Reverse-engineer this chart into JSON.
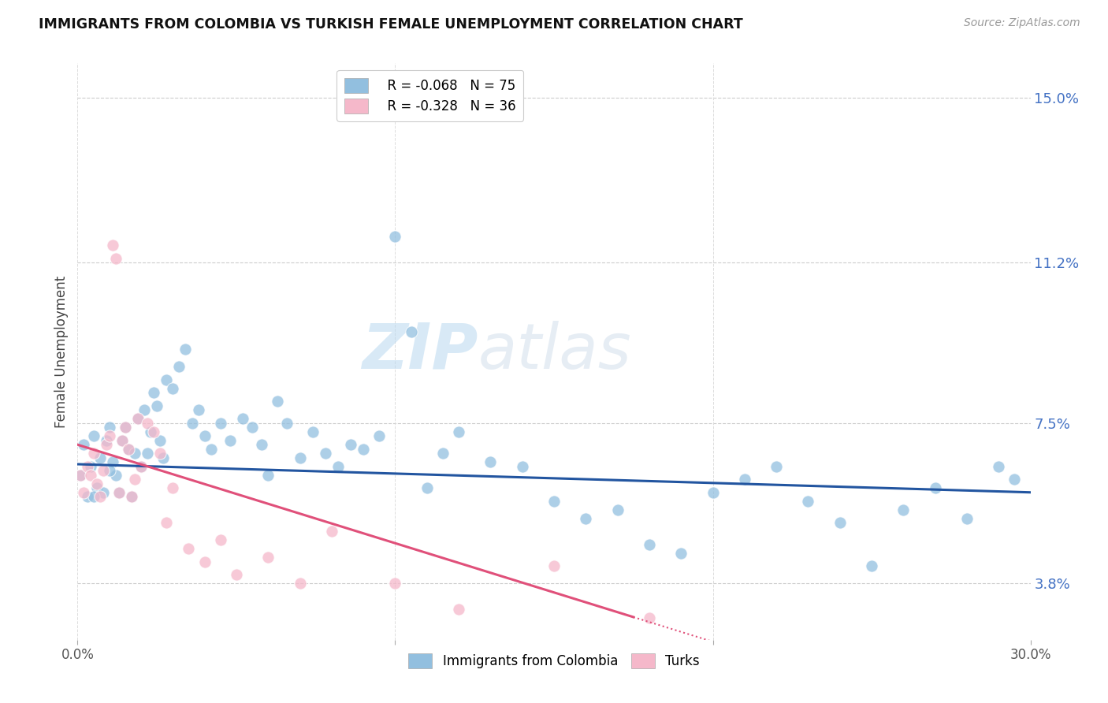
{
  "title": "IMMIGRANTS FROM COLOMBIA VS TURKISH FEMALE UNEMPLOYMENT CORRELATION CHART",
  "source": "Source: ZipAtlas.com",
  "ylabel": "Female Unemployment",
  "yticks_pct": [
    3.8,
    7.5,
    11.2,
    15.0
  ],
  "ytick_labels": [
    "3.8%",
    "7.5%",
    "11.2%",
    "15.0%"
  ],
  "xmin": 0.0,
  "xmax": 0.3,
  "ymin": 0.025,
  "ymax": 0.158,
  "color_blue": "#92bfdf",
  "color_pink": "#f5b8ca",
  "line_blue": "#2255a0",
  "line_pink": "#e0507a",
  "legend_r1": "R = -0.068",
  "legend_n1": "N = 75",
  "legend_r2": "R = -0.328",
  "legend_n2": "N = 36",
  "watermark_zip": "ZIP",
  "watermark_atlas": "atlas",
  "blue_scatter_x": [
    0.001,
    0.002,
    0.003,
    0.004,
    0.005,
    0.006,
    0.007,
    0.008,
    0.009,
    0.01,
    0.011,
    0.012,
    0.013,
    0.014,
    0.015,
    0.016,
    0.017,
    0.018,
    0.019,
    0.02,
    0.021,
    0.022,
    0.023,
    0.024,
    0.025,
    0.026,
    0.027,
    0.028,
    0.03,
    0.032,
    0.034,
    0.036,
    0.038,
    0.04,
    0.042,
    0.045,
    0.048,
    0.052,
    0.055,
    0.058,
    0.06,
    0.063,
    0.066,
    0.07,
    0.074,
    0.078,
    0.082,
    0.086,
    0.09,
    0.095,
    0.1,
    0.105,
    0.11,
    0.115,
    0.12,
    0.13,
    0.14,
    0.15,
    0.16,
    0.17,
    0.18,
    0.19,
    0.2,
    0.21,
    0.22,
    0.23,
    0.24,
    0.25,
    0.26,
    0.27,
    0.28,
    0.29,
    0.295,
    0.005,
    0.01
  ],
  "blue_scatter_y": [
    0.063,
    0.07,
    0.058,
    0.065,
    0.072,
    0.06,
    0.067,
    0.059,
    0.071,
    0.074,
    0.066,
    0.063,
    0.059,
    0.071,
    0.074,
    0.069,
    0.058,
    0.068,
    0.076,
    0.065,
    0.078,
    0.068,
    0.073,
    0.082,
    0.079,
    0.071,
    0.067,
    0.085,
    0.083,
    0.088,
    0.092,
    0.075,
    0.078,
    0.072,
    0.069,
    0.075,
    0.071,
    0.076,
    0.074,
    0.07,
    0.063,
    0.08,
    0.075,
    0.067,
    0.073,
    0.068,
    0.065,
    0.07,
    0.069,
    0.072,
    0.118,
    0.096,
    0.06,
    0.068,
    0.073,
    0.066,
    0.065,
    0.057,
    0.053,
    0.055,
    0.047,
    0.045,
    0.059,
    0.062,
    0.065,
    0.057,
    0.052,
    0.042,
    0.055,
    0.06,
    0.053,
    0.065,
    0.062,
    0.058,
    0.064
  ],
  "pink_scatter_x": [
    0.001,
    0.002,
    0.003,
    0.004,
    0.005,
    0.006,
    0.007,
    0.008,
    0.009,
    0.01,
    0.011,
    0.012,
    0.013,
    0.014,
    0.015,
    0.016,
    0.017,
    0.018,
    0.019,
    0.02,
    0.022,
    0.024,
    0.026,
    0.028,
    0.03,
    0.035,
    0.04,
    0.045,
    0.05,
    0.06,
    0.07,
    0.08,
    0.1,
    0.12,
    0.15,
    0.18
  ],
  "pink_scatter_y": [
    0.063,
    0.059,
    0.065,
    0.063,
    0.068,
    0.061,
    0.058,
    0.064,
    0.07,
    0.072,
    0.116,
    0.113,
    0.059,
    0.071,
    0.074,
    0.069,
    0.058,
    0.062,
    0.076,
    0.065,
    0.075,
    0.073,
    0.068,
    0.052,
    0.06,
    0.046,
    0.043,
    0.048,
    0.04,
    0.044,
    0.038,
    0.05,
    0.038,
    0.032,
    0.042,
    0.03
  ],
  "blue_line_x0": 0.0,
  "blue_line_x1": 0.3,
  "blue_line_y0": 0.0655,
  "blue_line_y1": 0.059,
  "pink_line_x0": 0.0,
  "pink_line_x1": 0.22,
  "pink_line_y0": 0.07,
  "pink_line_y1": 0.02
}
